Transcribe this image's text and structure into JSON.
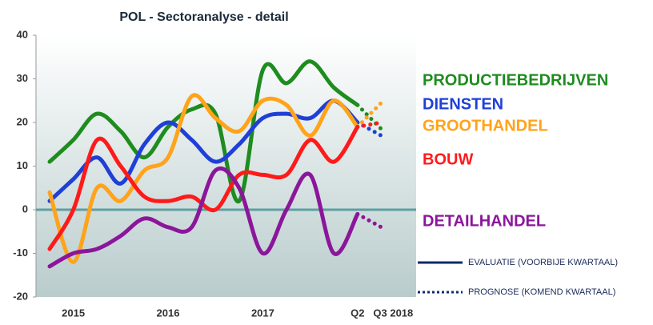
{
  "chart_data": {
    "type": "line",
    "title": "POL - Sectoranalyse - detail",
    "categories": [
      null,
      "2015",
      null,
      null,
      null,
      "2016",
      null,
      null,
      null,
      "2017",
      null,
      null,
      null,
      "Q2",
      "Q3 2018"
    ],
    "ylim": [
      -20,
      40
    ],
    "yticks": [
      -20,
      -10,
      0,
      10,
      20,
      30,
      40
    ],
    "series": [
      {
        "name": "PRODUCTIEBEDRIJVEN",
        "color": "#1e8c1e",
        "values": [
          11,
          16,
          22,
          18,
          12,
          19,
          23,
          22,
          2,
          32,
          29,
          34,
          28,
          24,
          18.5
        ]
      },
      {
        "name": "DIENSTEN",
        "color": "#1f3fd6",
        "values": [
          2,
          7,
          12,
          6,
          15,
          20,
          16,
          11,
          15,
          21,
          22,
          21,
          25,
          20,
          17
        ]
      },
      {
        "name": "GROOTHANDEL",
        "color": "#ffa31a",
        "values": [
          4,
          -12,
          5,
          2,
          9,
          12,
          26,
          21,
          18,
          25,
          24,
          17,
          25,
          19,
          24.5
        ]
      },
      {
        "name": "BOUW",
        "color": "#ff1a1a",
        "values": [
          -9,
          0,
          16,
          10,
          3,
          2,
          3,
          0,
          8,
          8,
          8,
          16,
          11,
          19,
          20
        ]
      },
      {
        "name": "DETAILHANDEL",
        "color": "#8b169b",
        "values": [
          -13,
          -10,
          -9,
          -6,
          -2,
          -4,
          -4,
          9,
          5,
          -10,
          0,
          8,
          -10,
          -1,
          -4
        ]
      }
    ],
    "legend": {
      "solid": "EVALUATIE (VOORBIJE KWARTAAL)",
      "dotted": "PROGNOSE (KOMEND KWARTAAL)"
    }
  }
}
